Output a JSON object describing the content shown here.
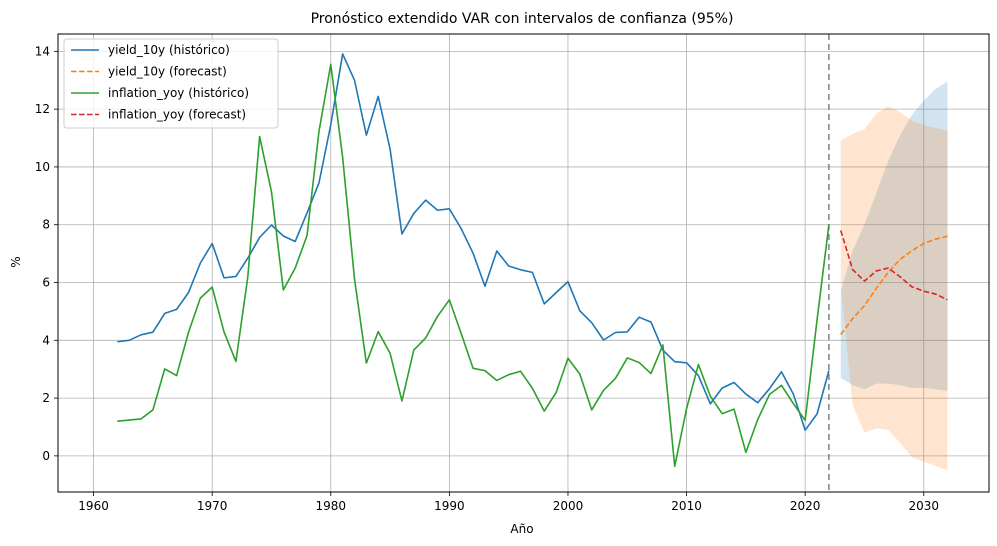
{
  "chart_data": {
    "type": "line",
    "title": "Pronóstico extendido VAR con intervalos de confianza (95%)",
    "xlabel": "Año",
    "ylabel": "%",
    "xlim": [
      1957,
      2035.5
    ],
    "ylim": [
      -1.25,
      14.6
    ],
    "xticks": [
      1960,
      1970,
      1980,
      1990,
      2000,
      2010,
      2020,
      2030
    ],
    "yticks": [
      0,
      2,
      4,
      6,
      8,
      10,
      12,
      14
    ],
    "grid": true,
    "legend_position": "top-left",
    "forecast_start_line": 2022,
    "series": [
      {
        "name": "yield_10y (histórico)",
        "color": "#1f77b4",
        "style": "solid",
        "x": [
          1962,
          1963,
          1964,
          1965,
          1966,
          1967,
          1968,
          1969,
          1970,
          1971,
          1972,
          1973,
          1974,
          1975,
          1976,
          1977,
          1978,
          1979,
          1980,
          1981,
          1982,
          1983,
          1984,
          1985,
          1986,
          1987,
          1988,
          1989,
          1990,
          1991,
          1992,
          1993,
          1994,
          1995,
          1996,
          1997,
          1998,
          1999,
          2000,
          2001,
          2002,
          2003,
          2004,
          2005,
          2006,
          2007,
          2008,
          2009,
          2010,
          2011,
          2012,
          2013,
          2014,
          2015,
          2016,
          2017,
          2018,
          2019,
          2020,
          2021,
          2022
        ],
        "values": [
          3.95,
          4.0,
          4.19,
          4.28,
          4.93,
          5.07,
          5.65,
          6.67,
          7.35,
          6.16,
          6.21,
          6.84,
          7.56,
          7.99,
          7.61,
          7.42,
          8.41,
          9.44,
          11.46,
          13.91,
          13.0,
          11.1,
          12.44,
          10.62,
          7.68,
          8.39,
          8.85,
          8.5,
          8.55,
          7.86,
          7.01,
          5.87,
          7.09,
          6.57,
          6.44,
          6.35,
          5.26,
          5.65,
          6.03,
          5.02,
          4.61,
          4.01,
          4.27,
          4.29,
          4.8,
          4.63,
          3.66,
          3.26,
          3.22,
          2.78,
          1.8,
          2.35,
          2.54,
          2.14,
          1.84,
          2.33,
          2.91,
          2.14,
          0.89,
          1.45,
          2.95
        ]
      },
      {
        "name": "yield_10y (forecast)",
        "color": "#ff7f0e",
        "style": "dashed",
        "x": [
          2023,
          2024,
          2025,
          2026,
          2027,
          2028,
          2029,
          2030,
          2031,
          2032
        ],
        "values": [
          4.2,
          4.75,
          5.2,
          5.8,
          6.35,
          6.8,
          7.1,
          7.35,
          7.5,
          7.6
        ]
      },
      {
        "name": "inflation_yoy (histórico)",
        "color": "#2ca02c",
        "style": "solid",
        "x": [
          1962,
          1963,
          1964,
          1965,
          1966,
          1967,
          1968,
          1969,
          1970,
          1971,
          1972,
          1973,
          1974,
          1975,
          1976,
          1977,
          1978,
          1979,
          1980,
          1981,
          1982,
          1983,
          1984,
          1985,
          1986,
          1987,
          1988,
          1989,
          1990,
          1991,
          1992,
          1993,
          1994,
          1995,
          1996,
          1997,
          1998,
          1999,
          2000,
          2001,
          2002,
          2003,
          2004,
          2005,
          2006,
          2007,
          2008,
          2009,
          2010,
          2011,
          2012,
          2013,
          2014,
          2015,
          2016,
          2017,
          2018,
          2019,
          2020,
          2021,
          2022
        ],
        "values": [
          1.2,
          1.24,
          1.28,
          1.59,
          3.01,
          2.78,
          4.27,
          5.46,
          5.84,
          4.29,
          3.27,
          6.18,
          11.05,
          9.14,
          5.74,
          6.5,
          7.63,
          11.22,
          13.55,
          10.33,
          6.13,
          3.21,
          4.3,
          3.55,
          1.9,
          3.66,
          4.08,
          4.83,
          5.4,
          4.23,
          3.03,
          2.95,
          2.61,
          2.81,
          2.93,
          2.34,
          1.55,
          2.19,
          3.38,
          2.83,
          1.59,
          2.27,
          2.68,
          3.39,
          3.23,
          2.85,
          3.84,
          -0.36,
          1.64,
          3.16,
          2.07,
          1.46,
          1.62,
          0.12,
          1.26,
          2.13,
          2.44,
          1.81,
          1.23,
          4.7,
          8.0
        ]
      },
      {
        "name": "inflation_yoy (forecast)",
        "color": "#d62728",
        "style": "dashed",
        "x": [
          2023,
          2024,
          2025,
          2026,
          2027,
          2028,
          2029,
          2030,
          2031,
          2032
        ],
        "values": [
          7.8,
          6.45,
          6.05,
          6.4,
          6.5,
          6.2,
          5.85,
          5.7,
          5.6,
          5.4
        ]
      }
    ],
    "confidence_bands": [
      {
        "series": "yield_10y (forecast)",
        "color": "#1f77b4",
        "x": [
          2023,
          2024,
          2025,
          2026,
          2027,
          2028,
          2029,
          2030,
          2031,
          2032
        ],
        "lower": [
          2.7,
          2.45,
          2.3,
          2.5,
          2.5,
          2.45,
          2.35,
          2.35,
          2.3,
          2.25
        ],
        "upper": [
          5.7,
          7.1,
          8.0,
          9.1,
          10.2,
          11.1,
          11.8,
          12.3,
          12.7,
          12.95
        ]
      },
      {
        "series": "inflation_yoy (forecast)",
        "color": "#ff7f0e",
        "x": [
          2023,
          2024,
          2025,
          2026,
          2027,
          2028,
          2029,
          2030,
          2031,
          2032
        ],
        "lower": [
          5.9,
          1.75,
          0.8,
          0.95,
          0.9,
          0.45,
          -0.05,
          -0.2,
          -0.35,
          -0.5
        ],
        "upper": [
          10.9,
          11.15,
          11.3,
          11.85,
          12.1,
          11.9,
          11.6,
          11.45,
          11.35,
          11.25
        ]
      }
    ]
  }
}
